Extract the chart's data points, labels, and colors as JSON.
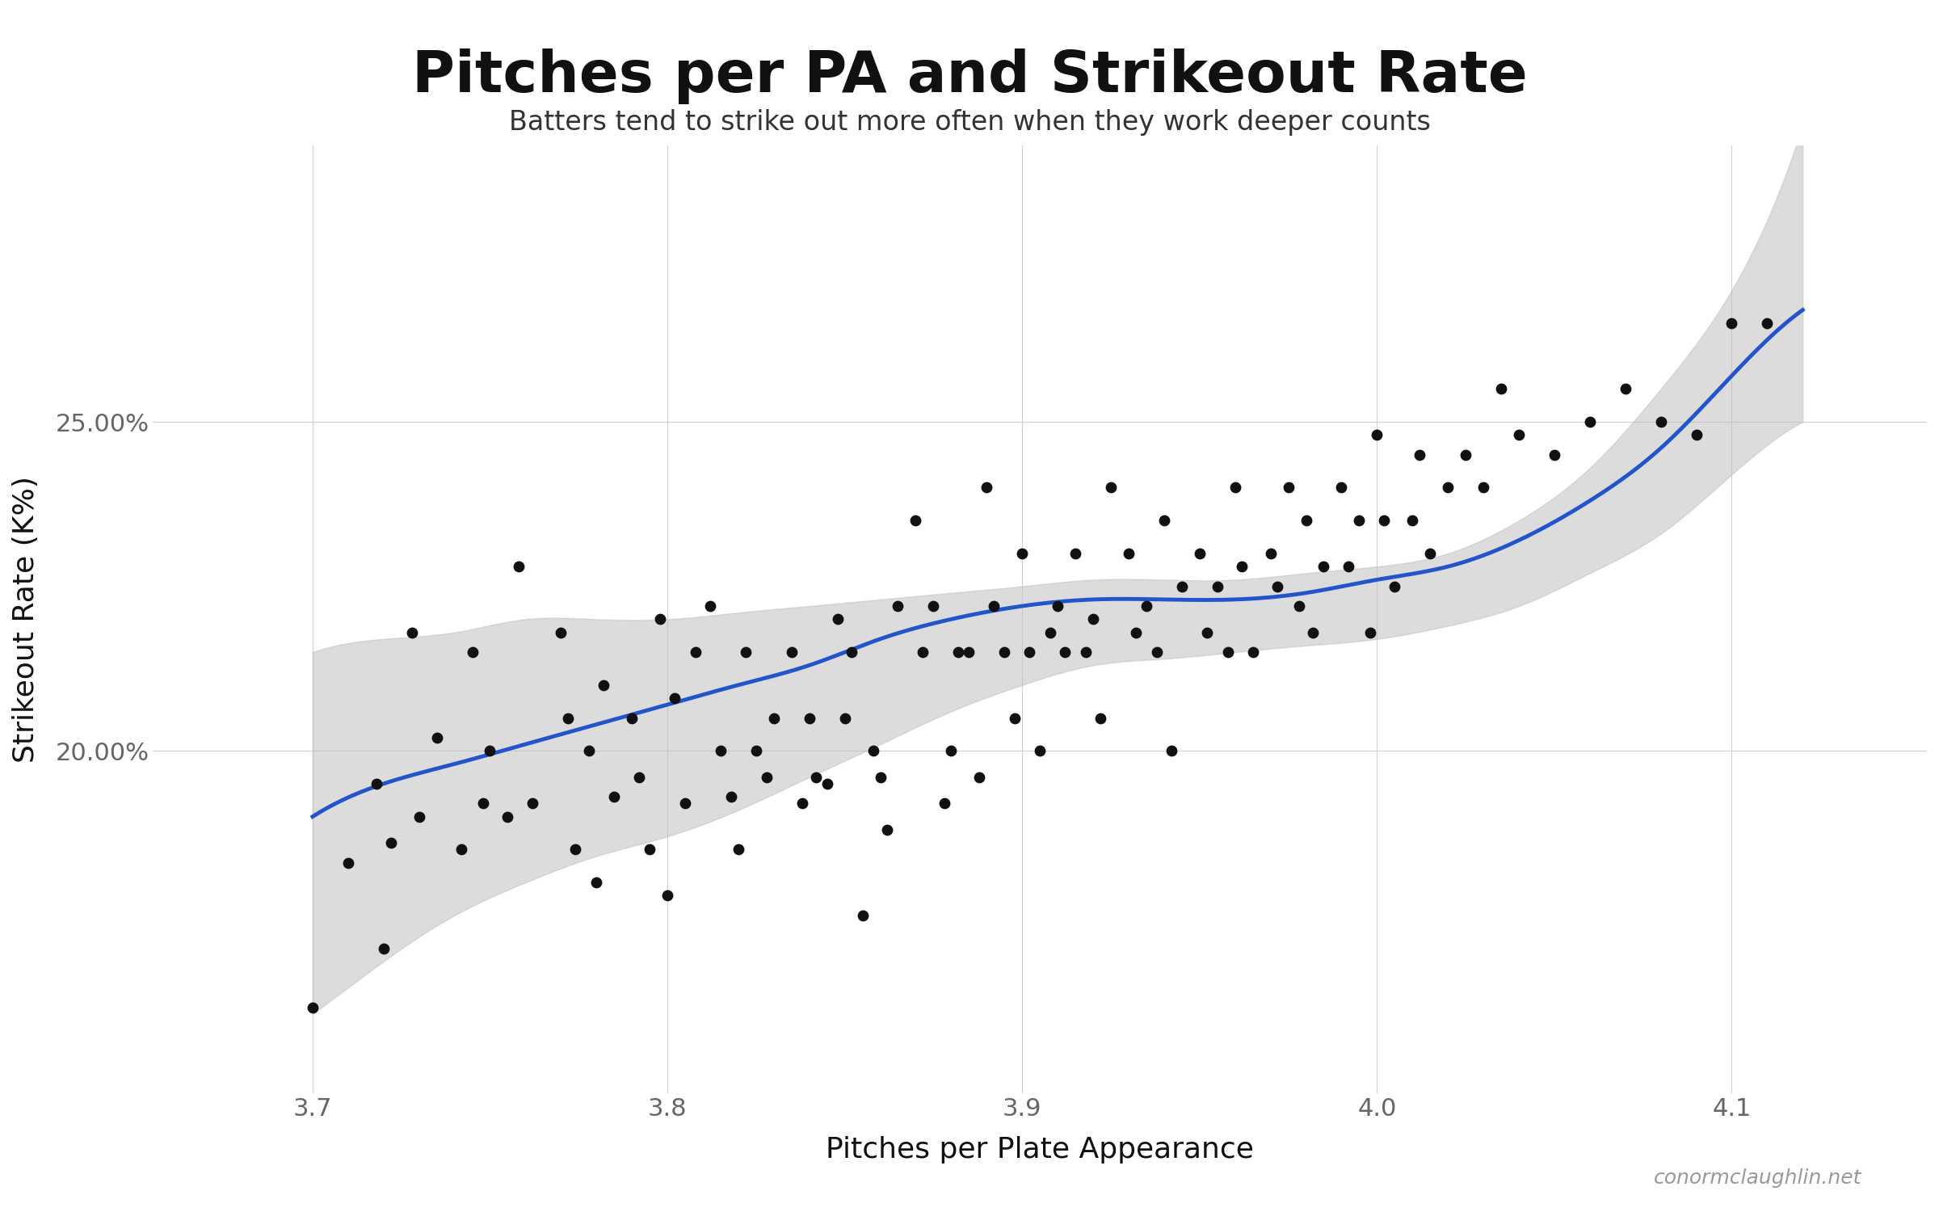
{
  "title": "Pitches per PA and Strikeout Rate",
  "subtitle": "Batters tend to strike out more often when they work deeper counts",
  "xlabel": "Pitches per Plate Appearance",
  "ylabel": "Strikeout Rate (K%)",
  "credit": "conormclaughlin.net",
  "background_color": "#ffffff",
  "grid_color": "#d0d0d0",
  "dot_color": "#111111",
  "line_color": "#2255cc",
  "ci_color": "#c0c0c0",
  "xlim": [
    3.655,
    4.155
  ],
  "ylim": [
    0.148,
    0.292
  ],
  "xticks": [
    3.7,
    3.8,
    3.9,
    4.0,
    4.1
  ],
  "yticks": [
    0.2,
    0.25
  ],
  "x": [
    3.7,
    3.71,
    3.718,
    3.72,
    3.722,
    3.728,
    3.73,
    3.735,
    3.742,
    3.745,
    3.748,
    3.75,
    3.755,
    3.758,
    3.762,
    3.77,
    3.772,
    3.774,
    3.778,
    3.78,
    3.782,
    3.785,
    3.79,
    3.792,
    3.795,
    3.798,
    3.8,
    3.802,
    3.805,
    3.808,
    3.812,
    3.815,
    3.818,
    3.82,
    3.822,
    3.825,
    3.828,
    3.83,
    3.835,
    3.838,
    3.84,
    3.842,
    3.845,
    3.848,
    3.85,
    3.852,
    3.855,
    3.858,
    3.86,
    3.862,
    3.865,
    3.87,
    3.872,
    3.875,
    3.878,
    3.88,
    3.882,
    3.885,
    3.888,
    3.89,
    3.892,
    3.895,
    3.898,
    3.9,
    3.902,
    3.905,
    3.908,
    3.91,
    3.912,
    3.915,
    3.918,
    3.92,
    3.922,
    3.925,
    3.93,
    3.932,
    3.935,
    3.938,
    3.94,
    3.942,
    3.945,
    3.95,
    3.952,
    3.955,
    3.958,
    3.96,
    3.962,
    3.965,
    3.97,
    3.972,
    3.975,
    3.978,
    3.98,
    3.982,
    3.985,
    3.99,
    3.992,
    3.995,
    3.998,
    4.0,
    4.002,
    4.005,
    4.01,
    4.012,
    4.015,
    4.02,
    4.025,
    4.03,
    4.035,
    4.04,
    4.05,
    4.06,
    4.07,
    4.08,
    4.09,
    4.1,
    4.11
  ],
  "y": [
    0.161,
    0.183,
    0.195,
    0.17,
    0.186,
    0.218,
    0.19,
    0.202,
    0.185,
    0.215,
    0.192,
    0.2,
    0.19,
    0.228,
    0.192,
    0.218,
    0.205,
    0.185,
    0.2,
    0.18,
    0.21,
    0.193,
    0.205,
    0.196,
    0.185,
    0.22,
    0.178,
    0.208,
    0.192,
    0.215,
    0.222,
    0.2,
    0.193,
    0.185,
    0.215,
    0.2,
    0.196,
    0.205,
    0.215,
    0.192,
    0.205,
    0.196,
    0.195,
    0.22,
    0.205,
    0.215,
    0.175,
    0.2,
    0.196,
    0.188,
    0.222,
    0.235,
    0.215,
    0.222,
    0.192,
    0.2,
    0.215,
    0.215,
    0.196,
    0.24,
    0.222,
    0.215,
    0.205,
    0.23,
    0.215,
    0.2,
    0.218,
    0.222,
    0.215,
    0.23,
    0.215,
    0.22,
    0.205,
    0.24,
    0.23,
    0.218,
    0.222,
    0.215,
    0.235,
    0.2,
    0.225,
    0.23,
    0.218,
    0.225,
    0.215,
    0.24,
    0.228,
    0.215,
    0.23,
    0.225,
    0.24,
    0.222,
    0.235,
    0.218,
    0.228,
    0.24,
    0.228,
    0.235,
    0.218,
    0.248,
    0.235,
    0.225,
    0.235,
    0.245,
    0.23,
    0.24,
    0.245,
    0.24,
    0.255,
    0.248,
    0.245,
    0.25,
    0.255,
    0.25,
    0.248,
    0.265,
    0.265
  ],
  "smooth_x": [
    3.7,
    3.72,
    3.74,
    3.76,
    3.78,
    3.8,
    3.82,
    3.84,
    3.86,
    3.88,
    3.9,
    3.92,
    3.94,
    3.96,
    3.98,
    4.0,
    4.02,
    4.04,
    4.06,
    4.08,
    4.1,
    4.12
  ],
  "smooth_y": [
    0.19,
    0.195,
    0.198,
    0.201,
    0.204,
    0.207,
    0.21,
    0.213,
    0.217,
    0.22,
    0.222,
    0.223,
    0.223,
    0.223,
    0.224,
    0.226,
    0.228,
    0.232,
    0.238,
    0.246,
    0.257,
    0.267
  ],
  "ci_upper": [
    0.215,
    0.217,
    0.218,
    0.22,
    0.22,
    0.22,
    0.221,
    0.222,
    0.223,
    0.224,
    0.225,
    0.226,
    0.226,
    0.226,
    0.227,
    0.228,
    0.23,
    0.235,
    0.243,
    0.255,
    0.27,
    0.295
  ],
  "ci_lower": [
    0.16,
    0.168,
    0.175,
    0.18,
    0.184,
    0.187,
    0.191,
    0.196,
    0.201,
    0.206,
    0.21,
    0.213,
    0.214,
    0.215,
    0.216,
    0.217,
    0.219,
    0.222,
    0.227,
    0.233,
    0.242,
    0.25
  ]
}
